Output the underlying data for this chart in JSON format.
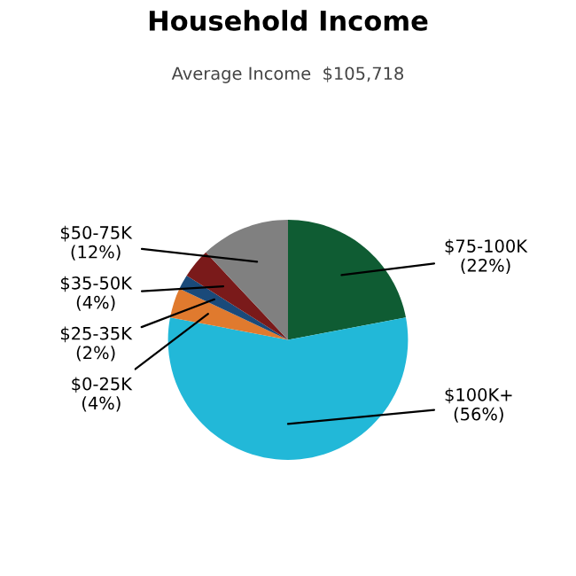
{
  "chart_data": {
    "type": "pie",
    "title": "Household Income",
    "subtitle": "Average Income  $105,718",
    "categories": [
      "$75-100K",
      "$100K+",
      "$0-25K",
      "$25-35K",
      "$35-50K",
      "$50-75K"
    ],
    "values": [
      22,
      56,
      4,
      2,
      4,
      12
    ],
    "colors": [
      "#0f5c33",
      "#22b8d8",
      "#e07a2e",
      "#1a4a7a",
      "#7a1a1a",
      "#808080"
    ],
    "value_labels": [
      "(22%)",
      "(56%)",
      "(4%)",
      "(2%)",
      "(4%)",
      "(12%)"
    ]
  }
}
